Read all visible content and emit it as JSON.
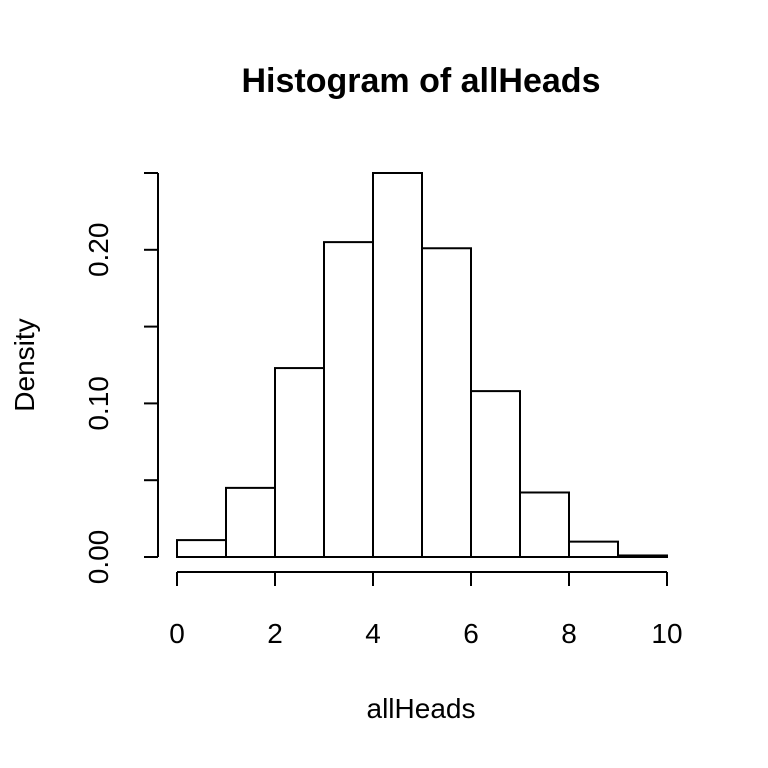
{
  "chart_data": {
    "type": "bar",
    "title": "Histogram of allHeads",
    "xlabel": "allHeads",
    "ylabel": "Density",
    "bin_edges": [
      0,
      1,
      2,
      3,
      4,
      5,
      6,
      7,
      8,
      9,
      10
    ],
    "values": [
      0.011,
      0.045,
      0.123,
      0.205,
      0.25,
      0.201,
      0.108,
      0.042,
      0.01,
      0.001
    ],
    "xlim": [
      0,
      10
    ],
    "ylim": [
      0,
      0.25
    ],
    "x_ticks": [
      0,
      2,
      4,
      6,
      8,
      10
    ],
    "x_tick_labels": [
      "0",
      "2",
      "4",
      "6",
      "8",
      "10"
    ],
    "y_ticks": [
      0,
      0.05,
      0.1,
      0.15,
      0.2,
      0.25
    ],
    "y_tick_labels": [
      "0.00",
      "",
      "0.10",
      "",
      "0.20",
      ""
    ],
    "grid": false,
    "legend": "none"
  }
}
